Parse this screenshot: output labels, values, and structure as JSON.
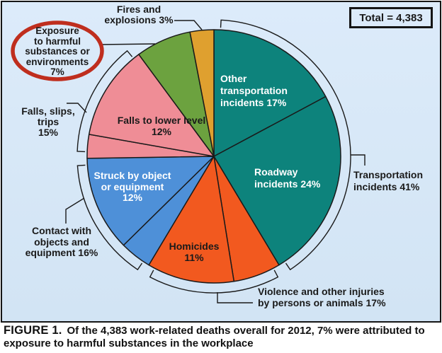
{
  "chart_data": {
    "type": "pie",
    "total_label": "Total = 4,383",
    "slices": [
      {
        "name": "Other transportation incidents",
        "pct": 17,
        "color": "#0d837c",
        "label": "Other\ntransportation\nincidents 17%"
      },
      {
        "name": "Roadway incidents",
        "pct": 24,
        "color": "#0d837c",
        "label": "Roadway\nincidents 24%"
      },
      {
        "name": "Violence - other injuries",
        "pct": 6,
        "color": "#f2591f",
        "label": ""
      },
      {
        "name": "Homicides",
        "pct": 11,
        "color": "#f2591f",
        "label": "Homicides\n11%"
      },
      {
        "name": "Contact - other",
        "pct": 4,
        "color": "#4e90d8",
        "label": ""
      },
      {
        "name": "Struck by object or equipment",
        "pct": 12,
        "color": "#4e90d8",
        "label": "Struck by object\nor equipment\n12%"
      },
      {
        "name": "Falls - other",
        "pct": 3,
        "color": "#ef8d96",
        "label": ""
      },
      {
        "name": "Falls to lower level",
        "pct": 12,
        "color": "#ef8d96",
        "label": "Falls to lower level\n12%"
      },
      {
        "name": "Exposure to harmful substances or environments",
        "pct": 7,
        "color": "#6ca23f",
        "label": "Exposure\nto harmful\nsubstances or\nenvironments\n7%"
      },
      {
        "name": "Fires and explosions",
        "pct": 3,
        "color": "#dfa02f",
        "label": "Fires and\nexplosions 3%"
      }
    ],
    "groups": [
      {
        "name": "Transportation incidents",
        "pct": 41,
        "slices": [
          0,
          1
        ],
        "label": "Transportation\nincidents 41%"
      },
      {
        "name": "Violence and other injuries by persons or animals",
        "pct": 17,
        "slices": [
          2,
          3
        ],
        "label": "Violence and other injuries\nby persons or animals 17%"
      },
      {
        "name": "Contact with objects and equipment",
        "pct": 16,
        "slices": [
          4,
          5
        ],
        "label": "Contact with\nobjects and\nequipment 16%"
      },
      {
        "name": "Falls, slips, trips",
        "pct": 15,
        "slices": [
          6,
          7
        ],
        "label": "Falls, slips,\ntrips\n15%"
      }
    ],
    "legend_position": "outside-callouts",
    "highlight": {
      "slice": "Exposure to harmful substances or environments",
      "marker": "red-oval",
      "color": "#bf2e1e"
    }
  },
  "total_box": {
    "label": "Total = 4,383"
  },
  "caption": {
    "figure_label": "FIGURE 1.",
    "text": "Of the 4,383 work-related deaths overall for 2012, 7% were attributed to exposure to harmful substances in the workplace"
  }
}
